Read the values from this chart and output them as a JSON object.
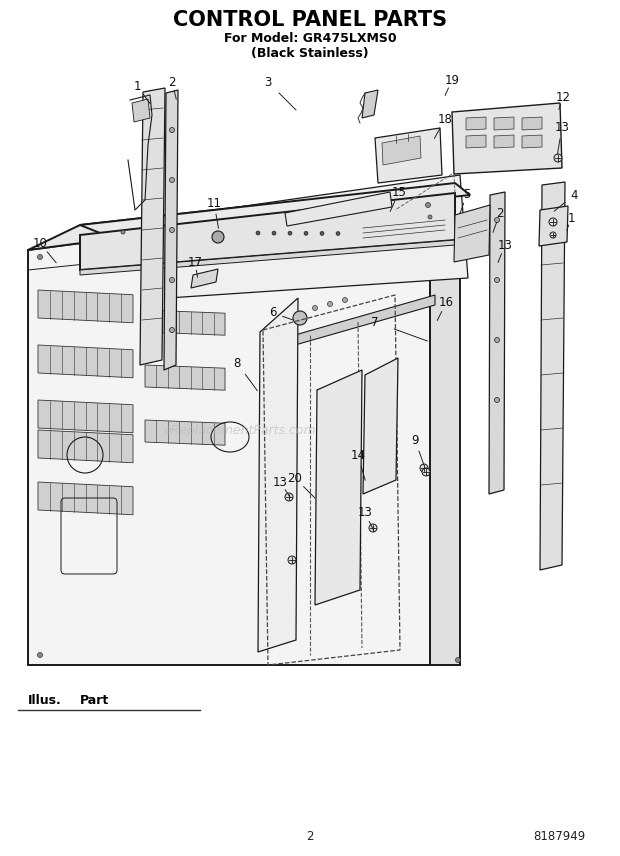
{
  "title": "CONTROL PANEL PARTS",
  "subtitle1": "For Model: GR475LXMS0",
  "subtitle2": "(Black Stainless)",
  "page_number": "2",
  "part_number": "8187949",
  "illus_label": "Illus.",
  "part_label": "Part",
  "background_color": "#ffffff",
  "title_fontsize": 15,
  "subtitle_fontsize": 9,
  "watermark_text": "eReplacementParts.com",
  "watermark_color": "#bbbbbb",
  "lw_main": 1.4,
  "lw_detail": 0.8,
  "lw_dashed": 0.9,
  "part_label_fontsize": 8.5,
  "footer_fontsize": 8.5,
  "illus_fontsize": 9
}
